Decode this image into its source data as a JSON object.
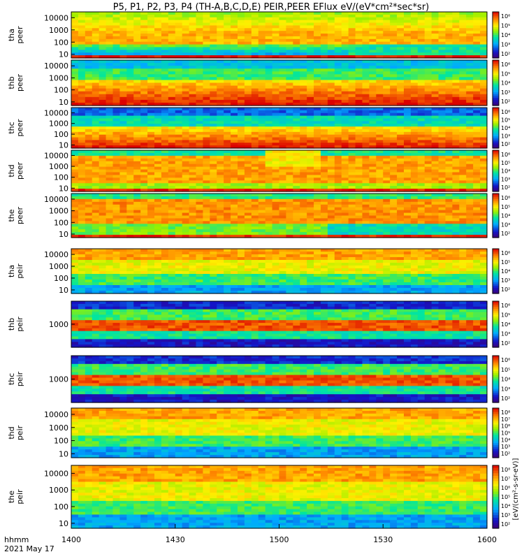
{
  "title": "P5, P1, P2, P3, P4 (TH-A,B,C,D,E) PEIR,PEER EFlux eV/(eV*cm²*sec*sr)",
  "colorbar_unit_label": "[eV/(cm²-s-sr-eV)]",
  "colorbar_tick_labels": [
    "10²",
    "10³",
    "10⁴",
    "10⁵",
    "10⁶",
    "10⁷",
    "10⁸"
  ],
  "chart_data": {
    "type": "heatmap",
    "title": "P5, P1, P2, P3, P4 (TH-A,B,C,D,E) PEIR,PEER EFlux eV/(eV*cm²*sec*sr)",
    "xlabel": "hhmm",
    "date_label": "2021 May 17",
    "x_ticks": [
      "1400",
      "1430",
      "1500",
      "1530",
      "1600"
    ],
    "xlim": [
      "14:00",
      "16:00"
    ],
    "y_scale": "log",
    "colormap": "rainbow (purple-blue-green-yellow-red)",
    "panels": [
      {
        "name": "tha peer",
        "label_top": "tha",
        "label_bottom": "peer",
        "ylim": [
          5,
          30000
        ],
        "y_ticks": [
          "10",
          "100",
          "1000",
          "10000"
        ],
        "variant": "peer_a"
      },
      {
        "name": "thb peer",
        "label_top": "thb",
        "label_bottom": "peer",
        "ylim": [
          5,
          30000
        ],
        "y_ticks": [
          "10",
          "100",
          "1000",
          "10000"
        ],
        "variant": "peer_b"
      },
      {
        "name": "thc peer",
        "label_top": "thc",
        "label_bottom": "peer",
        "ylim": [
          5,
          30000
        ],
        "y_ticks": [
          "10",
          "100",
          "1000",
          "10000"
        ],
        "variant": "peer_c"
      },
      {
        "name": "thd peer",
        "label_top": "thd",
        "label_bottom": "peer",
        "ylim": [
          5,
          30000
        ],
        "y_ticks": [
          "10",
          "100",
          "1000",
          "10000"
        ],
        "variant": "peer_d"
      },
      {
        "name": "the peer",
        "label_top": "the",
        "label_bottom": "peer",
        "ylim": [
          5,
          30000
        ],
        "y_ticks": [
          "10",
          "100",
          "1000",
          "10000"
        ],
        "variant": "peer_e"
      },
      {
        "name": "tha peir",
        "label_top": "tha",
        "label_bottom": "peir",
        "ylim": [
          5,
          30000
        ],
        "y_ticks": [
          "10",
          "100",
          "1000",
          "10000"
        ],
        "variant": "peir_full"
      },
      {
        "name": "thb peir",
        "label_top": "thb",
        "label_bottom": "peir",
        "ylim": [
          100,
          10000
        ],
        "y_ticks": [
          "1000"
        ],
        "variant": "peir_band"
      },
      {
        "name": "thc peir",
        "label_top": "thc",
        "label_bottom": "peir",
        "ylim": [
          100,
          10000
        ],
        "y_ticks": [
          "1000"
        ],
        "variant": "peir_band"
      },
      {
        "name": "thd peir",
        "label_top": "thd",
        "label_bottom": "peir",
        "ylim": [
          5,
          30000
        ],
        "y_ticks": [
          "10",
          "100",
          "1000",
          "10000"
        ],
        "variant": "peir_full"
      },
      {
        "name": "the peir",
        "label_top": "the",
        "label_bottom": "peir",
        "ylim": [
          5,
          30000
        ],
        "y_ticks": [
          "10",
          "100",
          "1000",
          "10000"
        ],
        "variant": "peir_full"
      }
    ]
  }
}
